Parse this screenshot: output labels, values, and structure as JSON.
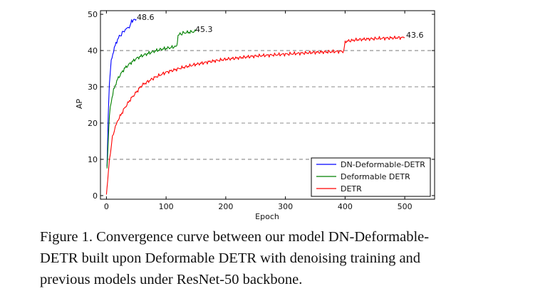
{
  "chart_data": {
    "type": "line",
    "title": "",
    "xlabel": "Epoch",
    "ylabel": "AP",
    "xlim": [
      -10,
      550
    ],
    "ylim": [
      -1,
      51
    ],
    "xticks": [
      0,
      100,
      200,
      300,
      400,
      500
    ],
    "yticks": [
      0,
      10,
      20,
      30,
      40,
      50
    ],
    "grid": "horizontal-dashed",
    "legend_position": "lower-right",
    "series": [
      {
        "name": "DN-Deformable-DETR",
        "color": "#0000ff",
        "end_label": "48.6",
        "x": [
          1,
          3,
          5,
          8,
          12,
          16,
          20,
          25,
          30,
          35,
          40,
          42,
          45,
          48,
          50
        ],
        "y": [
          8,
          22,
          31,
          37,
          40,
          42,
          43.5,
          44.5,
          45.5,
          46.2,
          46.8,
          48.2,
          48.4,
          48.5,
          48.6
        ]
      },
      {
        "name": "Deformable DETR",
        "color": "#008000",
        "end_label": "45.3",
        "x": [
          1,
          3,
          5,
          8,
          12,
          16,
          20,
          30,
          40,
          50,
          60,
          70,
          80,
          90,
          100,
          110,
          118,
          120,
          125,
          130,
          140,
          150
        ],
        "y": [
          7.5,
          15,
          22,
          26,
          29,
          31,
          32.5,
          35,
          36.5,
          37.8,
          38.6,
          39.2,
          39.8,
          40.3,
          40.6,
          40.9,
          41.2,
          44.3,
          44.6,
          44.9,
          45.1,
          45.3
        ]
      },
      {
        "name": "DETR",
        "color": "#ff0000",
        "end_label": "43.6",
        "x": [
          0,
          2,
          5,
          10,
          15,
          20,
          30,
          40,
          50,
          60,
          80,
          100,
          125,
          150,
          175,
          200,
          250,
          300,
          350,
          398,
          400,
          420,
          450,
          480,
          500
        ],
        "y": [
          0.3,
          4,
          10,
          16,
          19,
          21,
          24,
          26.5,
          28.5,
          30.5,
          32.5,
          34,
          35.2,
          36.2,
          37,
          37.6,
          38.5,
          39,
          39.5,
          39.8,
          42.5,
          43,
          43.3,
          43.5,
          43.6
        ]
      }
    ]
  },
  "caption": {
    "lines": [
      "Figure 1. Convergence curve between our model DN-Deformable-",
      "DETR built upon Deformable DETR with denoising training and",
      "previous models under ResNet-50 backbone."
    ]
  }
}
